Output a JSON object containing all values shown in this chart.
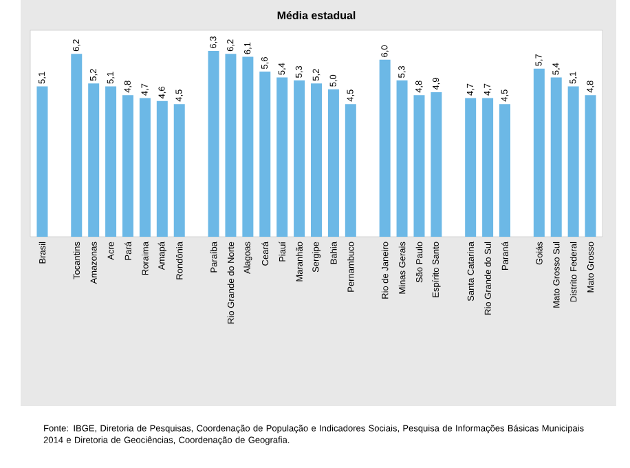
{
  "chart_data": {
    "type": "bar",
    "title": "Média estadual",
    "categories": [
      "Brasil",
      null,
      "Tocantins",
      "Amazonas",
      "Acre",
      "Pará",
      "Roraima",
      "Amapá",
      "Rondônia",
      null,
      "Paraíba",
      "Rio Grande do Norte",
      "Alagoas",
      "Ceará",
      "Piauí",
      "Maranhão",
      "Sergipe",
      "Bahia",
      "Pernambuco",
      null,
      "Rio de Janeiro",
      "Minas Gerais",
      "São Paulo",
      "Espírito Santo",
      null,
      "Santa Catarina",
      "Rio Grande do Sul",
      "Paraná",
      null,
      "Goiás",
      "Mato Grosso Sul",
      "Distrito Federal",
      "Mato Grosso"
    ],
    "values": [
      5.1,
      null,
      6.2,
      5.2,
      5.1,
      4.8,
      4.7,
      4.6,
      4.5,
      null,
      6.3,
      6.2,
      6.1,
      5.6,
      5.4,
      5.3,
      5.2,
      5.0,
      4.5,
      null,
      6.0,
      5.3,
      4.8,
      4.9,
      null,
      4.7,
      4.7,
      4.5,
      null,
      5.7,
      5.4,
      5.1,
      4.8
    ],
    "value_labels": [
      "5,1",
      null,
      "6,2",
      "5,2",
      "5,1",
      "4,8",
      "4,7",
      "4,6",
      "4,5",
      null,
      "6,3",
      "6,2",
      "6,1",
      "5,6",
      "5,4",
      "5,3",
      "5,2",
      "5,0",
      "4,5",
      null,
      "6,0",
      "5,3",
      "4,8",
      "4,9",
      null,
      "4,7",
      "4,7",
      "4,5",
      null,
      "5,7",
      "5,4",
      "5,1",
      "4,8"
    ],
    "color": "#6cb8e6",
    "ylim": [
      0,
      7
    ],
    "tick_labels": "x",
    "annotations": [
      "Fonte: IBGE, Diretoria de Pesquisas, Coordenação de População e Indicadores Sociais, Pesquisa de Informações Básicas Municipais 2014 e Diretoria de Geociências, Coordenação de Geografia."
    ]
  }
}
